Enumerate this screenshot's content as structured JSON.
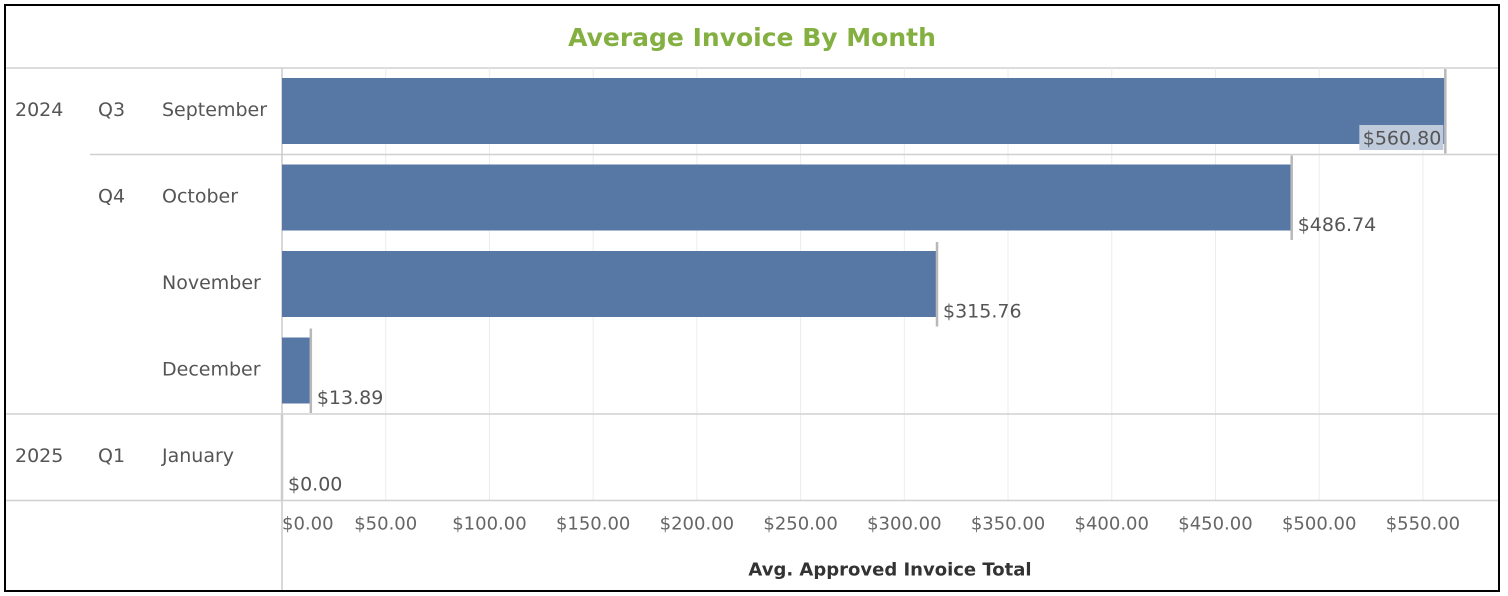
{
  "chart_data": {
    "type": "bar",
    "orientation": "horizontal",
    "title": "Average Invoice By Month",
    "xlabel": "Avg. Approved Invoice Total",
    "xlim": [
      0,
      580
    ],
    "xticks": [
      0,
      50,
      100,
      150,
      200,
      250,
      300,
      350,
      400,
      450,
      500,
      550
    ],
    "xtick_labels": [
      "$0.00",
      "$50.00",
      "$100.00",
      "$150.00",
      "$200.00",
      "$250.00",
      "$300.00",
      "$350.00",
      "$400.00",
      "$450.00",
      "$500.00",
      "$550.00"
    ],
    "rows": [
      {
        "year": "2024",
        "quarter": "Q3",
        "month": "September",
        "value": 560.8,
        "label": "$560.80"
      },
      {
        "year": "",
        "quarter": "Q4",
        "month": "October",
        "value": 486.74,
        "label": "$486.74"
      },
      {
        "year": "",
        "quarter": "",
        "month": "November",
        "value": 315.76,
        "label": "$315.76"
      },
      {
        "year": "",
        "quarter": "",
        "month": "December",
        "value": 13.89,
        "label": "$13.89"
      },
      {
        "year": "2025",
        "quarter": "Q1",
        "month": "January",
        "value": 0.0,
        "label": "$0.00"
      }
    ],
    "bar_color": "#5778a4",
    "grid": true,
    "legend": "none"
  }
}
